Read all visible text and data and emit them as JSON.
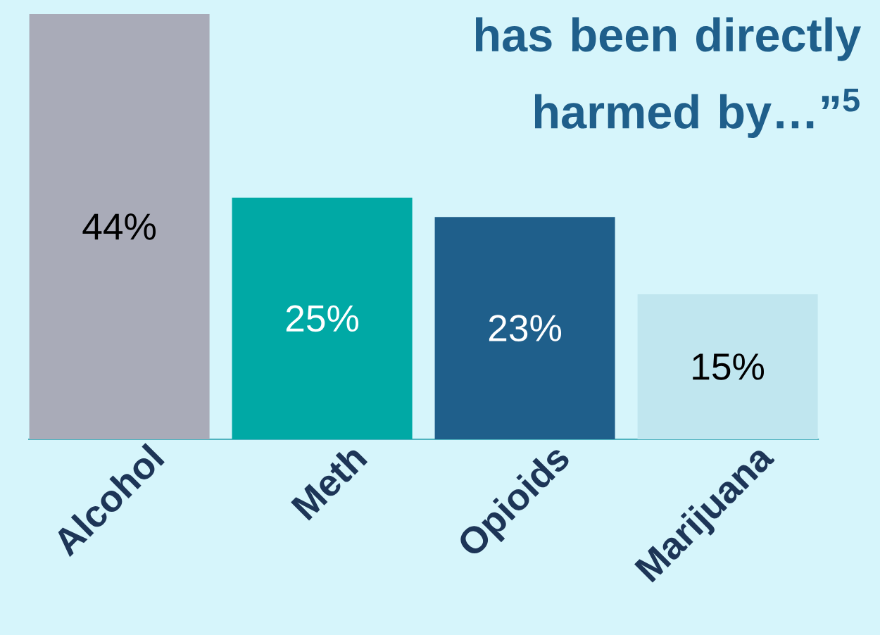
{
  "chart_data": {
    "type": "bar",
    "title": "has been directly harmed by…”$^{5}$",
    "categories": [
      "Alcohol",
      "Meth",
      "Opioids",
      "Marijuana"
    ],
    "values": [
      44,
      25,
      23,
      15
    ],
    "value_labels": [
      "44%",
      "25%",
      "23%",
      "15%"
    ],
    "colors": [
      "#a9abb8",
      "#00a9a5",
      "#1f5f8b",
      "#c0e6ef"
    ],
    "data_labels": true
  }
}
